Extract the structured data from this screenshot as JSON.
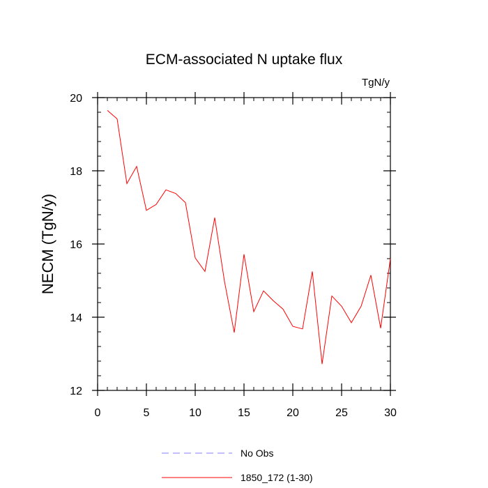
{
  "chart_data": {
    "type": "line",
    "title": "ECM-associated N uptake flux",
    "units_label": "TgN/y",
    "xlabel": "",
    "ylabel": "NECM  (TgN/y)",
    "xlim": [
      0,
      30
    ],
    "ylim": [
      12,
      20
    ],
    "xticks": [
      0,
      5,
      10,
      15,
      20,
      25,
      30
    ],
    "yticks": [
      12,
      14,
      16,
      18,
      20
    ],
    "x_minor_step": 1,
    "y_minor_step": 0.4,
    "grid": false,
    "legend_position": "bottom-center",
    "series": [
      {
        "name": "No Obs",
        "color": "#8080ff",
        "dash": "dashed",
        "x": [],
        "values": []
      },
      {
        "name": "1850_172 (1-30)",
        "color": "#ff0000",
        "dash": "solid",
        "x": [
          1,
          2,
          3,
          4,
          5,
          6,
          7,
          8,
          9,
          10,
          11,
          12,
          13,
          14,
          15,
          16,
          17,
          18,
          19,
          20,
          21,
          22,
          23,
          24,
          25,
          26,
          27,
          28,
          29,
          30
        ],
        "values": [
          19.65,
          19.42,
          17.65,
          18.12,
          16.92,
          17.08,
          17.48,
          17.38,
          17.13,
          15.62,
          15.25,
          16.72,
          14.98,
          13.58,
          15.72,
          14.15,
          14.72,
          14.45,
          14.22,
          13.75,
          13.68,
          15.25,
          12.72,
          14.58,
          14.3,
          13.85,
          14.3,
          15.15,
          13.7,
          15.6
        ]
      }
    ]
  }
}
